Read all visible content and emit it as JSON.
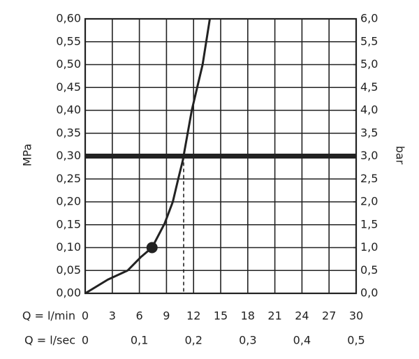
{
  "chart_data": {
    "type": "line",
    "y_label": "MPa",
    "y2_label": "bar",
    "x_label": "Q = l/min",
    "x2_label": "Q = l/sec",
    "x": [
      0,
      2.5,
      4.7,
      6.2,
      7.4,
      8.8,
      9.7,
      10.3,
      10.8,
      11.3,
      11.8,
      12.4,
      13.0,
      13.8
    ],
    "series": [
      {
        "color": "#222222",
        "values": [
          0,
          0.03,
          0.05,
          0.08,
          0.1,
          0.153,
          0.2,
          0.25,
          0.29,
          0.345,
          0.4,
          0.45,
          0.5,
          0.6
        ]
      }
    ],
    "xlim": [
      0,
      30
    ],
    "xticks": [
      0,
      3,
      6,
      9,
      12,
      15,
      18,
      21,
      24,
      27,
      30
    ],
    "x2lim": [
      0,
      0.5
    ],
    "x2ticks": [
      0,
      {
        "value": 0.1,
        "label": "0,1"
      },
      {
        "value": 0.2,
        "label": "0,2"
      },
      {
        "value": 0.3,
        "label": "0,3"
      },
      {
        "value": 0.4,
        "label": "0,4"
      },
      {
        "value": 0.5,
        "label": "0,5"
      }
    ],
    "ylim": [
      0,
      0.6
    ],
    "yticks": [
      {
        "value": 0,
        "label": "0,00"
      },
      {
        "value": 0.05,
        "label": "0,05"
      },
      {
        "value": 0.1,
        "label": "0,10"
      },
      {
        "value": 0.15,
        "label": "0,15"
      },
      {
        "value": 0.2,
        "label": "0,20"
      },
      {
        "value": 0.25,
        "label": "0,25"
      },
      {
        "value": 0.3,
        "label": "0,30"
      },
      {
        "value": 0.35,
        "label": "0,35"
      },
      {
        "value": 0.4,
        "label": "0,40"
      },
      {
        "value": 0.45,
        "label": "0,45"
      },
      {
        "value": 0.5,
        "label": "0,50"
      },
      {
        "value": 0.55,
        "label": "0,55"
      },
      {
        "value": 0.6,
        "label": "0,60"
      }
    ],
    "y2lim": [
      0,
      6
    ],
    "y2ticks": [
      {
        "value": 0,
        "label": "0,0"
      },
      {
        "value": 0.5,
        "label": "0,5"
      },
      {
        "value": 1,
        "label": "1,0"
      },
      {
        "value": 1.5,
        "label": "1,5"
      },
      {
        "value": 2,
        "label": "2,0"
      },
      {
        "value": 2.5,
        "label": "2,5"
      },
      {
        "value": 3,
        "label": "3,0"
      },
      {
        "value": 3.5,
        "label": "3,5"
      },
      {
        "value": 4,
        "label": "4,0"
      },
      {
        "value": 4.5,
        "label": "4,5"
      },
      {
        "value": 5,
        "label": "5,0"
      },
      {
        "value": 5.5,
        "label": "5,5"
      },
      {
        "value": 6,
        "label": "6,0"
      }
    ],
    "grid": true,
    "reference_y": 0.3,
    "dashed_x": 10.9,
    "marker": {
      "x": 7.4,
      "y": 0.1
    }
  }
}
